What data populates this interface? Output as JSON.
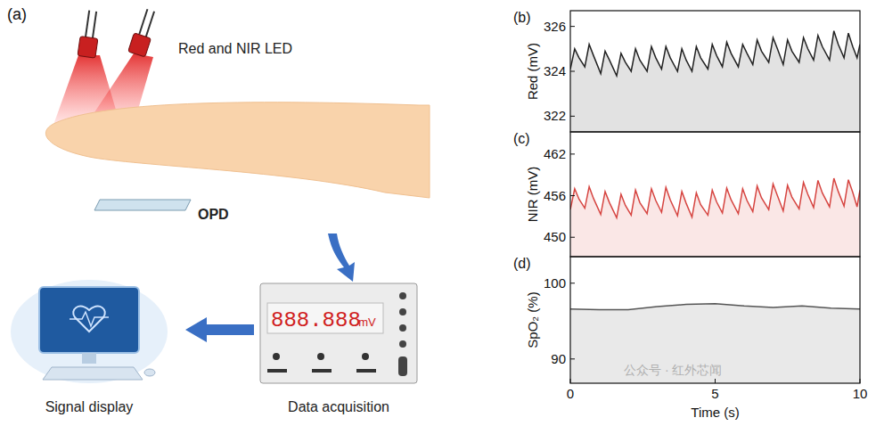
{
  "chart_data": [
    {
      "type": "area",
      "panel_label": "(b)",
      "y_label": "Red (mV)",
      "color": "#222222",
      "xlim": [
        0,
        10
      ],
      "ylim": [
        321.3,
        326.7
      ],
      "yticks": [
        322,
        324,
        326
      ],
      "tick_labels": "y",
      "x": [
        0,
        0.15,
        0.3,
        0.5,
        0.65,
        0.8,
        1.05,
        1.2,
        1.35,
        1.6,
        1.75,
        1.9,
        2.1,
        2.25,
        2.4,
        2.65,
        2.8,
        2.95,
        3.15,
        3.3,
        3.45,
        3.7,
        3.85,
        4,
        4.2,
        4.35,
        4.5,
        4.75,
        4.9,
        5.05,
        5.25,
        5.4,
        5.55,
        5.8,
        5.95,
        6.1,
        6.3,
        6.45,
        6.6,
        6.85,
        7,
        7.15,
        7.35,
        7.5,
        7.65,
        7.9,
        8.05,
        8.2,
        8.4,
        8.55,
        8.7,
        8.95,
        9.1,
        9.25,
        9.45,
        9.6,
        9.75,
        9.9,
        10
      ],
      "values": [
        324.1,
        325.0,
        324.6,
        324.2,
        325.2,
        324.7,
        323.9,
        324.9,
        324.5,
        323.8,
        324.8,
        324.4,
        324.0,
        325.0,
        324.5,
        324.0,
        325.1,
        324.6,
        324.1,
        325.1,
        324.6,
        324.0,
        325.0,
        324.5,
        324.0,
        325.1,
        324.6,
        324.1,
        325.2,
        324.7,
        324.2,
        325.3,
        324.8,
        324.2,
        325.2,
        324.8,
        324.3,
        325.4,
        324.9,
        324.4,
        325.5,
        325.0,
        324.3,
        325.4,
        324.9,
        324.4,
        325.5,
        325.0,
        324.5,
        325.6,
        325.1,
        324.5,
        325.8,
        325.2,
        324.6,
        325.7,
        325.1,
        324.6,
        325.2
      ]
    },
    {
      "type": "area",
      "panel_label": "(c)",
      "y_label": "NIR (mV)",
      "color": "#d64541",
      "xlim": [
        0,
        10
      ],
      "ylim": [
        447.2,
        465.2
      ],
      "yticks": [
        450,
        456,
        462
      ],
      "tick_labels": "y",
      "x": [
        0,
        0.15,
        0.3,
        0.5,
        0.65,
        0.8,
        1.05,
        1.2,
        1.35,
        1.6,
        1.75,
        1.9,
        2.1,
        2.25,
        2.4,
        2.65,
        2.8,
        2.95,
        3.15,
        3.3,
        3.45,
        3.7,
        3.85,
        4,
        4.2,
        4.35,
        4.5,
        4.75,
        4.9,
        5.05,
        5.25,
        5.4,
        5.55,
        5.8,
        5.95,
        6.1,
        6.3,
        6.45,
        6.6,
        6.85,
        7,
        7.15,
        7.35,
        7.5,
        7.65,
        7.9,
        8.05,
        8.2,
        8.4,
        8.55,
        8.7,
        8.95,
        9.1,
        9.25,
        9.45,
        9.6,
        9.75,
        9.9,
        10
      ],
      "values": [
        454.0,
        457.0,
        455.5,
        454.2,
        457.3,
        455.6,
        453.3,
        456.6,
        455.0,
        452.8,
        456.2,
        454.6,
        453.2,
        456.8,
        455.0,
        453.4,
        457.0,
        455.3,
        453.6,
        457.2,
        455.4,
        453.1,
        456.6,
        454.9,
        452.9,
        456.4,
        454.7,
        453.2,
        456.8,
        455.1,
        453.5,
        457.1,
        455.4,
        453.4,
        457.0,
        455.3,
        453.7,
        457.4,
        455.7,
        454.0,
        457.7,
        456.0,
        453.8,
        457.5,
        455.8,
        454.1,
        457.9,
        456.2,
        454.3,
        458.2,
        456.4,
        454.4,
        458.5,
        456.6,
        454.5,
        458.3,
        456.5,
        454.4,
        456.8
      ]
    },
    {
      "type": "area",
      "panel_label": "(d)",
      "y_label": "SpO₂ (%)",
      "x_label": "Time (s)",
      "color": "#555555",
      "xlim": [
        0,
        10
      ],
      "ylim": [
        86.8,
        103.5
      ],
      "yticks": [
        90,
        100
      ],
      "xticks": [
        0,
        5,
        10
      ],
      "x": [
        0,
        1,
        2,
        3,
        4,
        5,
        6,
        7,
        8,
        9,
        10
      ],
      "values": [
        96.6,
        96.5,
        96.5,
        96.9,
        97.2,
        97.3,
        97.0,
        96.8,
        97.0,
        96.7,
        96.6
      ]
    }
  ],
  "diagram": {
    "label": "(a)",
    "led_label": "Red and NIR LED",
    "detector": "OPD",
    "display": "888.888",
    "display_unit": "mV",
    "acquisition": "Data acquisition",
    "screen": "Signal display"
  },
  "watermark": "公众号 · 红外芯闻"
}
